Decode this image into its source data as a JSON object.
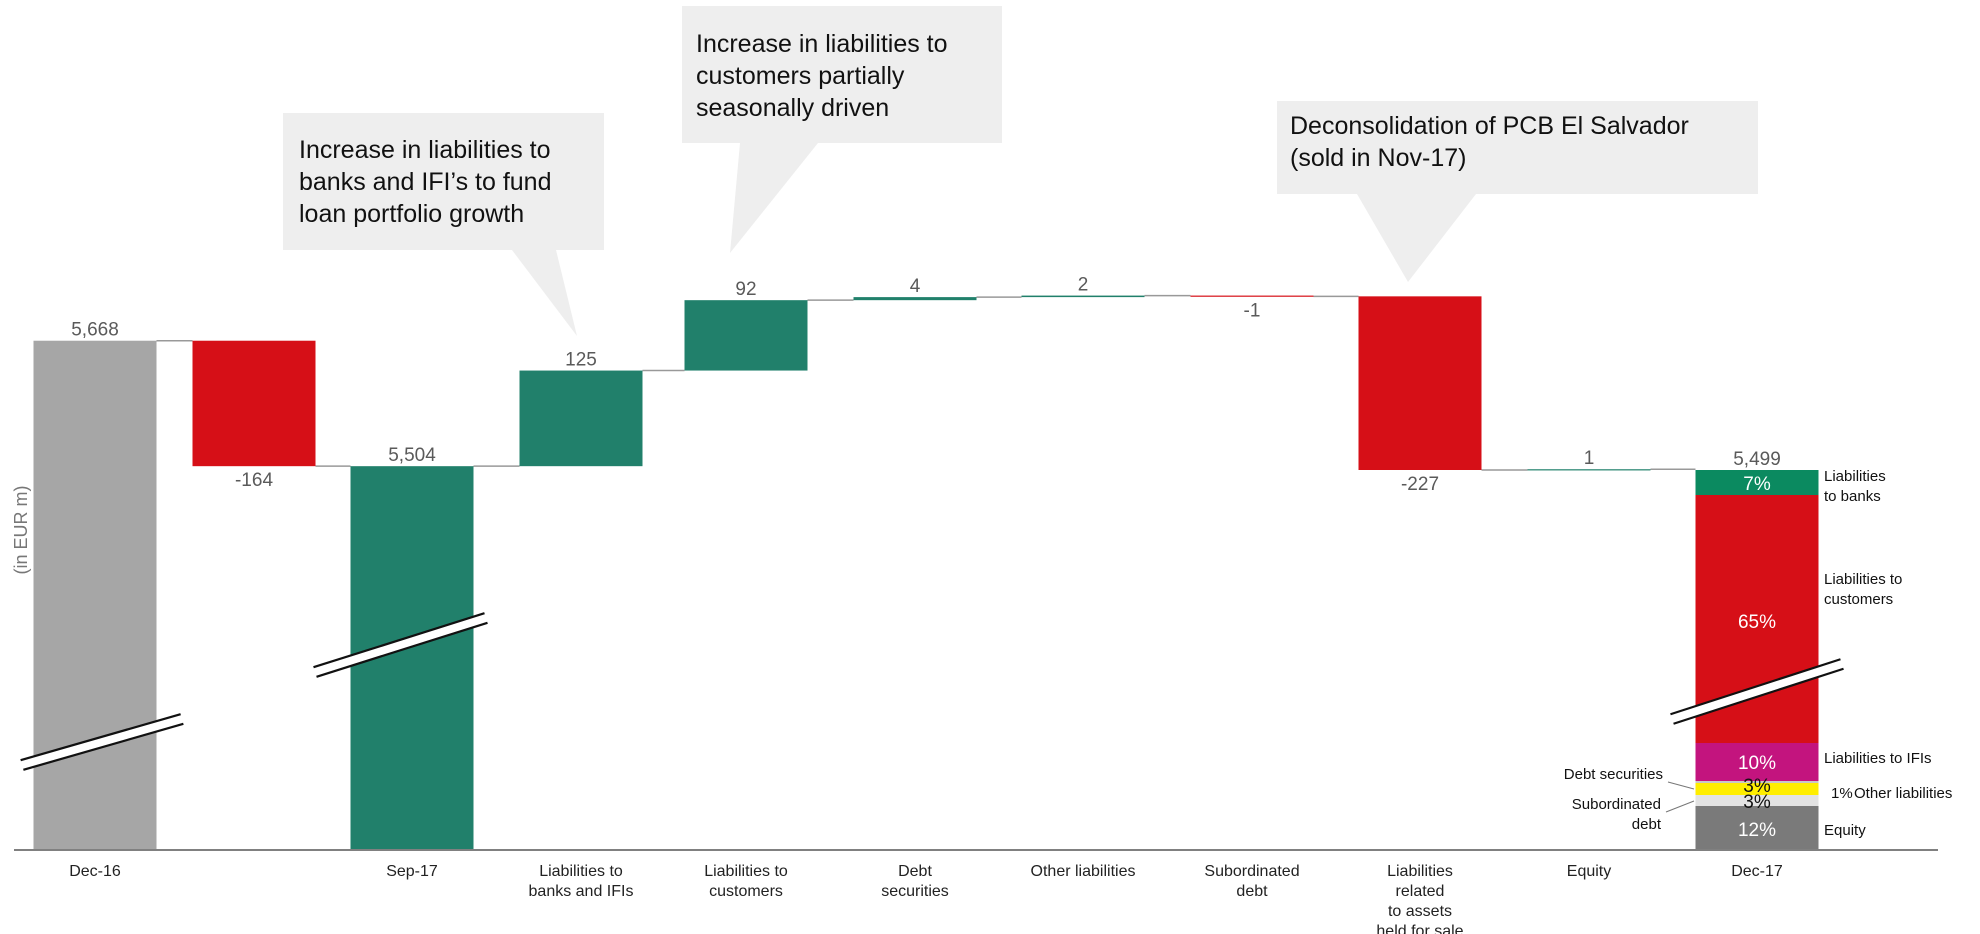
{
  "chart_data": {
    "type": "bar",
    "subtype": "waterfall",
    "ylabel": "(in EUR m)",
    "axis_break": true,
    "colors": {
      "total_grey": "#a6a6a6",
      "total_green": "#21806b",
      "increase": "#21806b",
      "decrease": "#d60f17",
      "callout": "#eeeeee"
    },
    "bars": [
      {
        "category": "Dec-16",
        "kind": "total",
        "value": 5668,
        "label": "5,668",
        "color": "#a6a6a6"
      },
      {
        "category": "",
        "kind": "delta",
        "value": -164,
        "label": "-164",
        "color": "#d60f17"
      },
      {
        "category": "Sep-17",
        "kind": "total",
        "value": 5504,
        "label": "5,504",
        "color": "#21806b"
      },
      {
        "category": "Liabilities to banks and IFIs",
        "kind": "delta",
        "value": 125,
        "label": "125",
        "color": "#21806b"
      },
      {
        "category": "Liabilities to customers",
        "kind": "delta",
        "value": 92,
        "label": "92",
        "color": "#21806b"
      },
      {
        "category": "Debt securities",
        "kind": "delta",
        "value": 4,
        "label": "4",
        "color": "#21806b"
      },
      {
        "category": "Other liabilities",
        "kind": "delta",
        "value": 2,
        "label": "2",
        "color": "#21806b"
      },
      {
        "category": "Subordinated debt",
        "kind": "delta",
        "value": -1,
        "label": "-1",
        "color": "#d60f17"
      },
      {
        "category": "Liabilities related to assets held for sale",
        "kind": "delta",
        "value": -227,
        "label": "-227",
        "color": "#d60f17"
      },
      {
        "category": "Equity",
        "kind": "delta",
        "value": 1,
        "label": "1",
        "color": "#21806b"
      },
      {
        "category": "Dec-17",
        "kind": "stacked_total",
        "value": 5499,
        "label": "5,499"
      }
    ],
    "category_labels": [
      [
        "Dec-16"
      ],
      [],
      [
        "Sep-17"
      ],
      [
        "Liabilities to",
        "banks and IFIs"
      ],
      [
        "Liabilities to",
        "customers"
      ],
      [
        "Debt",
        "securities"
      ],
      [
        "Other liabilities"
      ],
      [
        "Subordinated",
        "debt"
      ],
      [
        "Liabilities",
        "related",
        "to assets",
        "held for sale"
      ],
      [
        "Equity"
      ],
      [
        "Dec-17"
      ]
    ],
    "dec17_breakdown": [
      {
        "name": "Liabilities to banks",
        "label_lines": [
          "Liabilities",
          "to banks"
        ],
        "side": "right",
        "pct": "7%",
        "color": "#0b8a60",
        "text_color": "#ffffff"
      },
      {
        "name": "Liabilities to customers",
        "label_lines": [
          "Liabilities to",
          "customers"
        ],
        "side": "right",
        "pct": "65%",
        "color": "#d60f17",
        "text_color": "#ffffff"
      },
      {
        "name": "Liabilities to IFIs",
        "label_lines": [
          "Liabilities to IFIs"
        ],
        "side": "right",
        "pct": "10%",
        "color": "#c3147e",
        "text_color": "#ffffff"
      },
      {
        "name": "Other liabilities",
        "label_lines": [
          "Other liabilities"
        ],
        "side": "right",
        "pct": "1%",
        "pct_outside": true,
        "color": "#c8c8c8",
        "text_color": "#111111"
      },
      {
        "name": "Debt securities",
        "label_lines": [
          "Debt securities"
        ],
        "side": "left",
        "pct": "3%",
        "color": "#ffee00",
        "text_color": "#111111"
      },
      {
        "name": "Subordinated debt",
        "label_lines": [
          "Subordinated",
          "debt"
        ],
        "side": "left",
        "pct": "3%",
        "color": "#e3e3e3",
        "text_color": "#111111"
      },
      {
        "name": "Equity",
        "label_lines": [
          "Equity"
        ],
        "side": "right",
        "pct": "12%",
        "color": "#7a7a7a",
        "text_color": "#ffffff"
      }
    ],
    "annotations": [
      {
        "lines": [
          "Increase in liabilities to",
          "banks and IFI’s to fund",
          "loan portfolio growth"
        ],
        "points_to": "Liabilities to banks and IFIs"
      },
      {
        "lines": [
          "Increase in liabilities to",
          "customers partially",
          "seasonally driven"
        ],
        "points_to": "Liabilities to customers"
      },
      {
        "lines": [
          "Deconsolidation of PCB El Salvador",
          "(sold in Nov-17)"
        ],
        "points_to": "Liabilities related to assets held for sale"
      }
    ]
  }
}
